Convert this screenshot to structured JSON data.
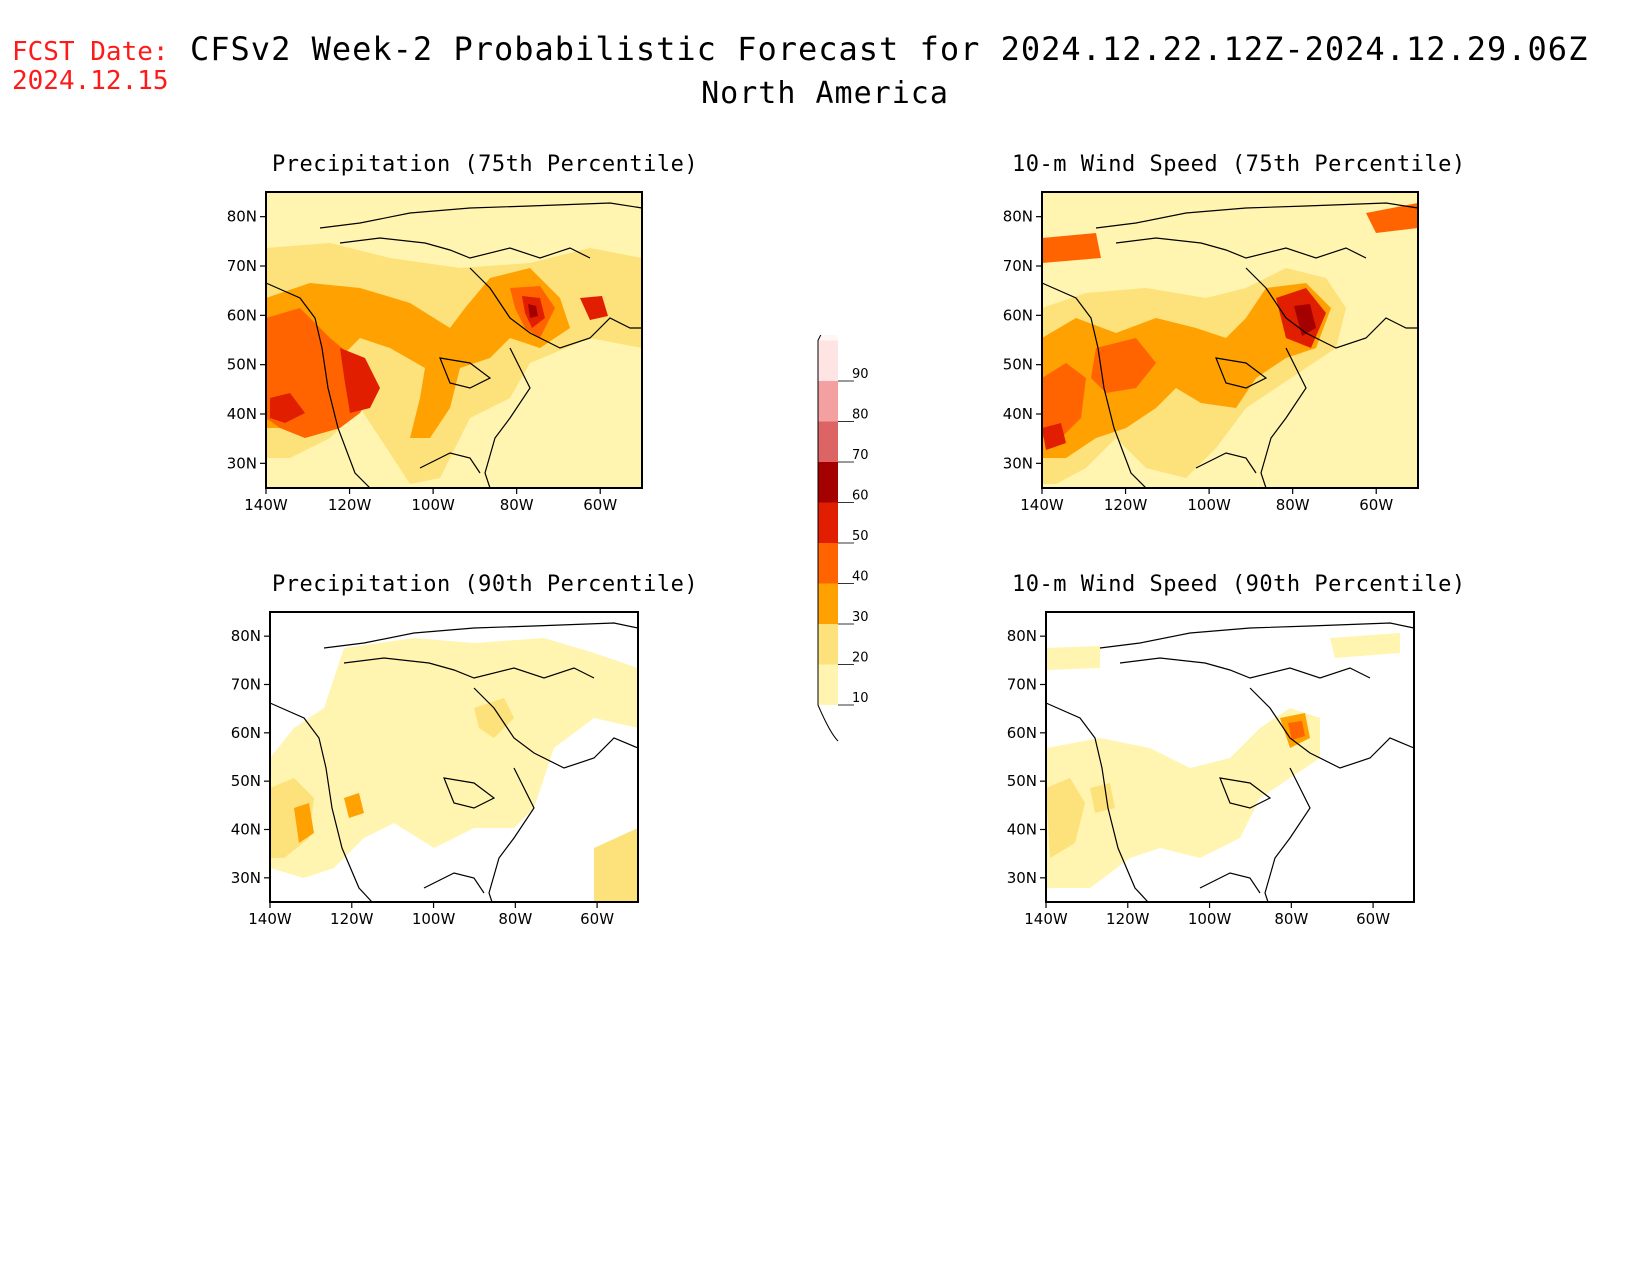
{
  "header": {
    "fcst_date_label": "FCST Date:",
    "fcst_date": "2024.12.15",
    "title": "CFSv2 Week-2 Probabilistic Forecast for 2024.12.22.12Z-2024.12.29.06Z",
    "subtitle": "North America"
  },
  "map_axes": {
    "lon_ticks": [
      "140W",
      "120W",
      "100W",
      "80W",
      "60W"
    ],
    "lat_ticks": [
      "80N",
      "70N",
      "60N",
      "50N",
      "40N",
      "30N"
    ],
    "lon_range": [
      -140,
      -50
    ],
    "lat_range": [
      25,
      85
    ]
  },
  "panels": [
    {
      "id": "precip75",
      "title": "Precipitation (75th Percentile)"
    },
    {
      "id": "wind75",
      "title": "10-m Wind Speed (75th Percentile)"
    },
    {
      "id": "precip90",
      "title": "Precipitation (90th Percentile)"
    },
    {
      "id": "wind90",
      "title": "10-m Wind Speed (90th Percentile)"
    }
  ],
  "colorbar": {
    "labels": [
      "10",
      "20",
      "30",
      "40",
      "50",
      "60",
      "70",
      "80",
      "90"
    ],
    "colors": [
      "#fff5b0",
      "#fde17a",
      "#ffa100",
      "#ff6400",
      "#e11e00",
      "#a50000",
      "#dd6464",
      "#f4a0a0",
      "#ffe4e4"
    ]
  }
}
